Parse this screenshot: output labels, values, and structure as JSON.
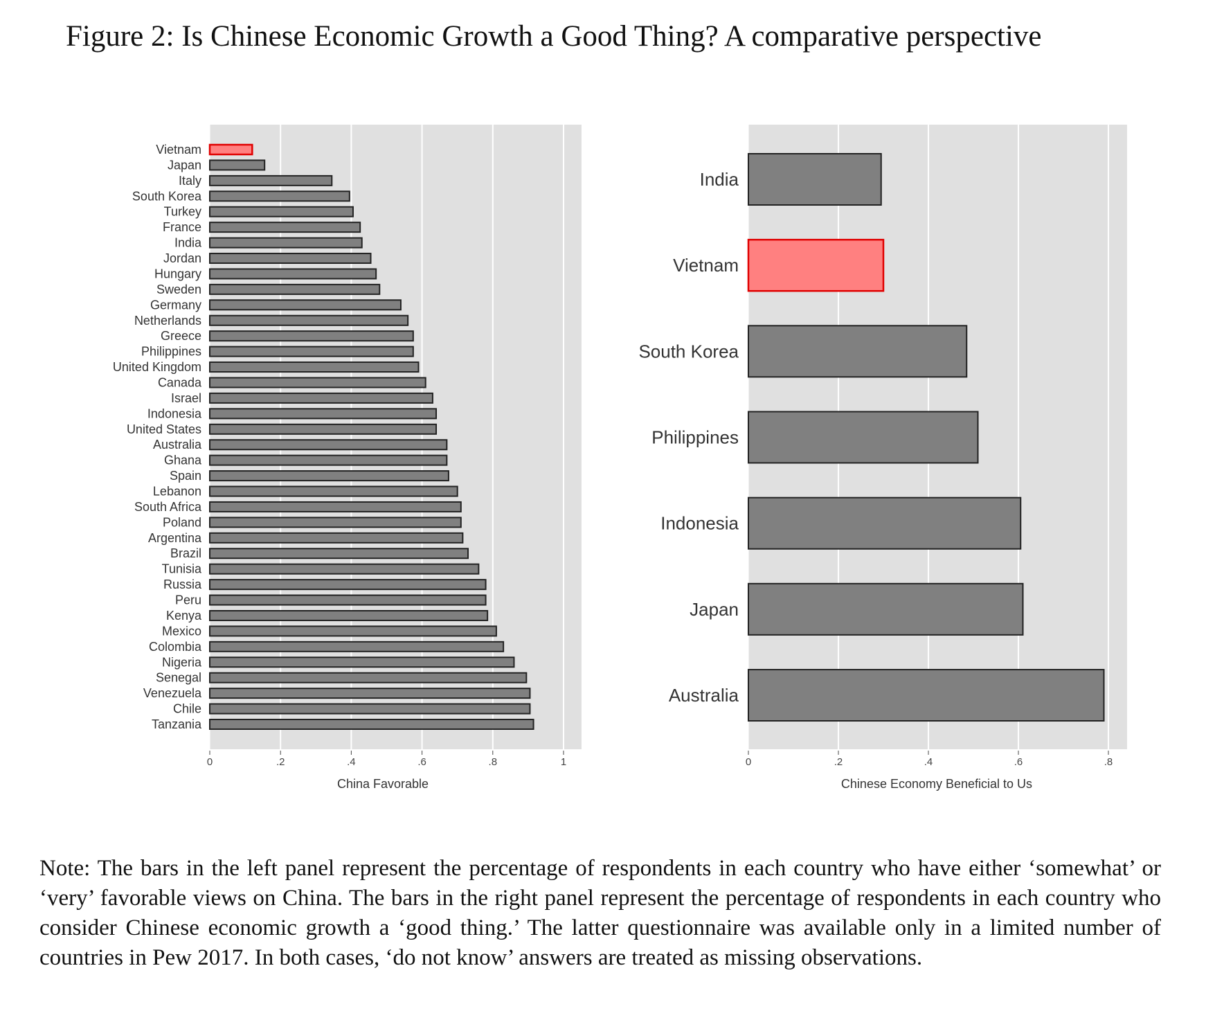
{
  "figure": {
    "title": "Figure 2: Is Chinese Economic Growth a Good Thing? A comparative perspective",
    "note": "Note: The bars in the left panel represent the percentage of respondents in each country who have either ‘somewhat’ or ‘very’ favorable views on China. The bars in the right panel represent the percentage of respondents in each country who consider Chinese economic growth a ‘good thing.’ The latter questionnaire was available only in a limited number of countries in Pew 2017. In both cases, ‘do not know’ answers are treated as missing observations."
  },
  "colors": {
    "panel_bg": "#e0e0e0",
    "bar": "#808080",
    "highlight": "#ff8080",
    "highlight_edge": "#e00000",
    "bar_edge": "#222222"
  },
  "chart_data": [
    {
      "type": "bar",
      "orientation": "horizontal",
      "xlabel": "China Favorable",
      "xlim": [
        0,
        1
      ],
      "xticks": [
        0,
        0.2,
        0.4,
        0.6,
        0.8,
        1
      ],
      "xtick_labels": [
        "0",
        ".2",
        ".4",
        ".6",
        ".8",
        "1"
      ],
      "grid": true,
      "highlight": "Vietnam",
      "categories": [
        "Vietnam",
        "Japan",
        "Italy",
        "South Korea",
        "Turkey",
        "France",
        "India",
        "Jordan",
        "Hungary",
        "Sweden",
        "Germany",
        "Netherlands",
        "Greece",
        "Philippines",
        "United Kingdom",
        "Canada",
        "Israel",
        "Indonesia",
        "United States",
        "Australia",
        "Ghana",
        "Spain",
        "Lebanon",
        "South Africa",
        "Poland",
        "Argentina",
        "Brazil",
        "Tunisia",
        "Russia",
        "Peru",
        "Kenya",
        "Mexico",
        "Colombia",
        "Nigeria",
        "Senegal",
        "Venezuela",
        "Chile",
        "Tanzania"
      ],
      "values": [
        0.12,
        0.155,
        0.345,
        0.395,
        0.405,
        0.425,
        0.43,
        0.455,
        0.47,
        0.48,
        0.54,
        0.56,
        0.575,
        0.575,
        0.59,
        0.61,
        0.63,
        0.64,
        0.64,
        0.67,
        0.67,
        0.675,
        0.7,
        0.71,
        0.71,
        0.715,
        0.73,
        0.76,
        0.78,
        0.78,
        0.785,
        0.81,
        0.83,
        0.86,
        0.895,
        0.905,
        0.905,
        0.915
      ]
    },
    {
      "type": "bar",
      "orientation": "horizontal",
      "xlabel": "Chinese Economy Beneficial to Us",
      "xlim": [
        0,
        0.8
      ],
      "xticks": [
        0,
        0.2,
        0.4,
        0.6,
        0.8
      ],
      "xtick_labels": [
        "0",
        ".2",
        ".4",
        ".6",
        ".8"
      ],
      "grid": true,
      "highlight": "Vietnam",
      "categories": [
        "India",
        "Vietnam",
        "South Korea",
        "Philippines",
        "Indonesia",
        "Japan",
        "Australia"
      ],
      "values": [
        0.295,
        0.3,
        0.485,
        0.51,
        0.605,
        0.61,
        0.79
      ]
    }
  ]
}
